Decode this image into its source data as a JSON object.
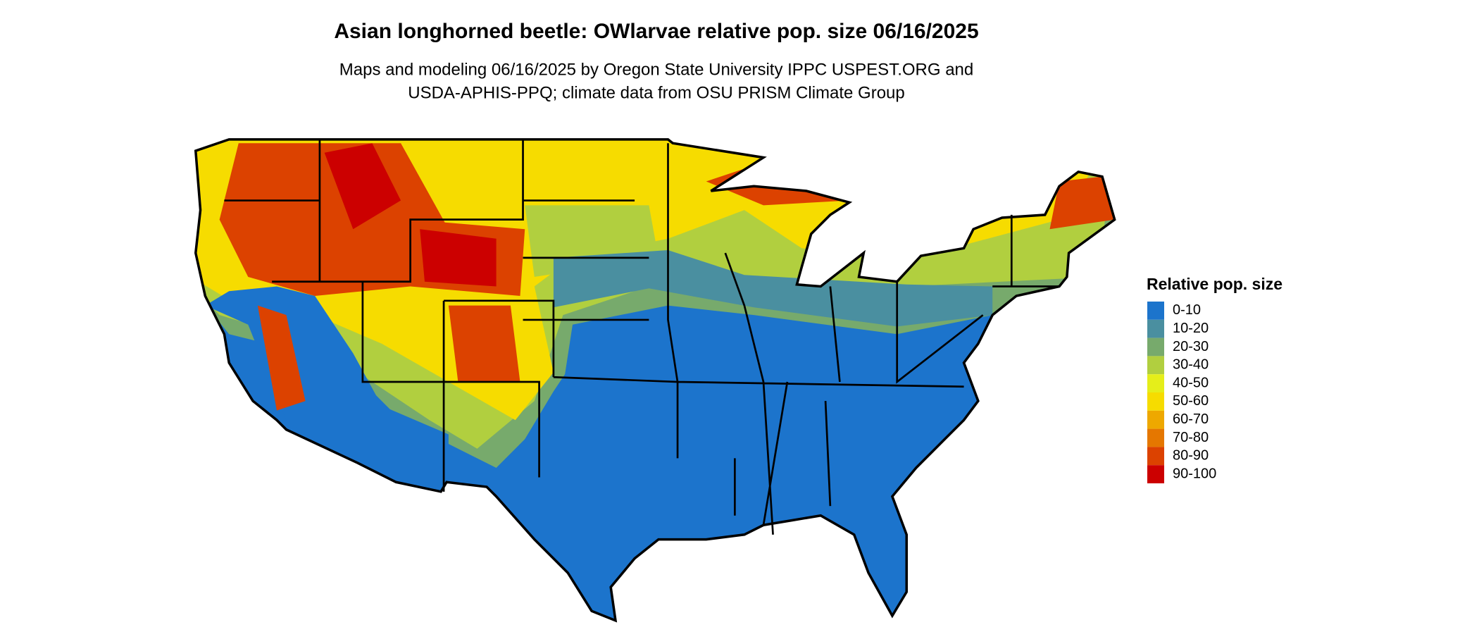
{
  "header": {
    "title": "Asian longhorned beetle: OWlarvae relative pop. size 06/16/2025",
    "subtitle": [
      "Maps and modeling 06/16/2025 by Oregon State University IPPC USPEST.ORG and",
      "USDA-APHIS-PPQ; climate data from OSU PRISM Climate Group"
    ]
  },
  "legend": {
    "title": "Relative pop. size",
    "items": [
      {
        "label": "0-10",
        "color": "#1c74cc"
      },
      {
        "label": "10-20",
        "color": "#4a8fa0"
      },
      {
        "label": "20-30",
        "color": "#77aa6c"
      },
      {
        "label": "30-40",
        "color": "#b1cf3f"
      },
      {
        "label": "40-50",
        "color": "#e5ee1a"
      },
      {
        "label": "50-60",
        "color": "#f6dc00"
      },
      {
        "label": "60-70",
        "color": "#eea800"
      },
      {
        "label": "70-80",
        "color": "#e57700"
      },
      {
        "label": "80-90",
        "color": "#dc4200"
      },
      {
        "label": "90-100",
        "color": "#cc0000"
      }
    ]
  }
}
